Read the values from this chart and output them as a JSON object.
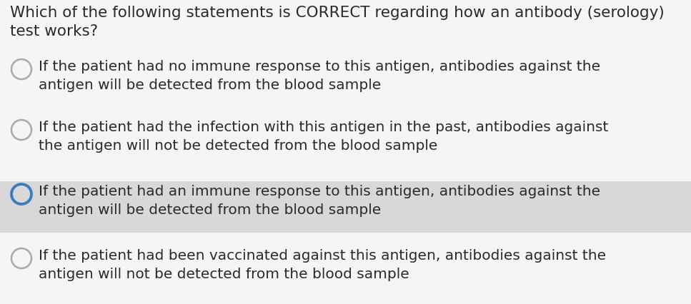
{
  "title_line1": "Which of the following statements is CORRECT regarding how an antibody (serology)",
  "title_line2": "test works?",
  "options": [
    {
      "text": "If the patient had no immune response to this antigen, antibodies against the\nantigen will be detected from the blood sample",
      "selected": false,
      "highlighted": false
    },
    {
      "text": "If the patient had the infection with this antigen in the past, antibodies against\nthe antigen will not be detected from the blood sample",
      "selected": false,
      "highlighted": false
    },
    {
      "text": "If the patient had an immune response to this antigen, antibodies against the\nantigen will be detected from the blood sample",
      "selected": true,
      "highlighted": true
    },
    {
      "text": "If the patient had been vaccinated against this antigen, antibodies against the\nantigen will not be detected from the blood sample",
      "selected": false,
      "highlighted": false
    }
  ],
  "bg_color": "#f5f5f5",
  "highlight_color": "#d8d8d8",
  "text_color": "#2a2a2a",
  "title_fontsize": 15.5,
  "option_fontsize": 14.5,
  "circle_color_unselected": "#aaaaaa",
  "circle_color_selected": "#3a7cc1",
  "circle_linewidth_unselected": 1.8,
  "circle_linewidth_selected": 2.8,
  "fig_width": 9.67,
  "fig_height": 4.27,
  "dpi": 100
}
